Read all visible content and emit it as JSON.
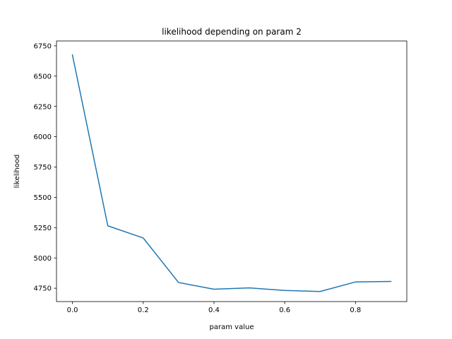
{
  "chart_data": {
    "type": "line",
    "title": "likelihood depending on param 2",
    "xlabel": "param value",
    "ylabel": "likelihood",
    "xlim": [
      -0.045,
      0.945
    ],
    "ylim": [
      4640,
      6790
    ],
    "xticks": [
      0.0,
      0.2,
      0.4,
      0.6,
      0.8
    ],
    "xtick_labels": [
      "0.0",
      "0.2",
      "0.4",
      "0.6",
      "0.8"
    ],
    "yticks": [
      4750,
      5000,
      5250,
      5500,
      5750,
      6000,
      6250,
      6500,
      6750
    ],
    "ytick_labels": [
      "4750",
      "5000",
      "5250",
      "5500",
      "5750",
      "6000",
      "6250",
      "6500",
      "6750"
    ],
    "grid": false,
    "series": [
      {
        "color": "#1f77b4",
        "x": [
          0.0,
          0.1,
          0.2,
          0.3,
          0.4,
          0.5,
          0.6,
          0.7,
          0.8,
          0.9
        ],
        "y": [
          6675,
          5265,
          5165,
          4797,
          4742,
          4753,
          4732,
          4723,
          4802,
          4806
        ]
      }
    ]
  }
}
